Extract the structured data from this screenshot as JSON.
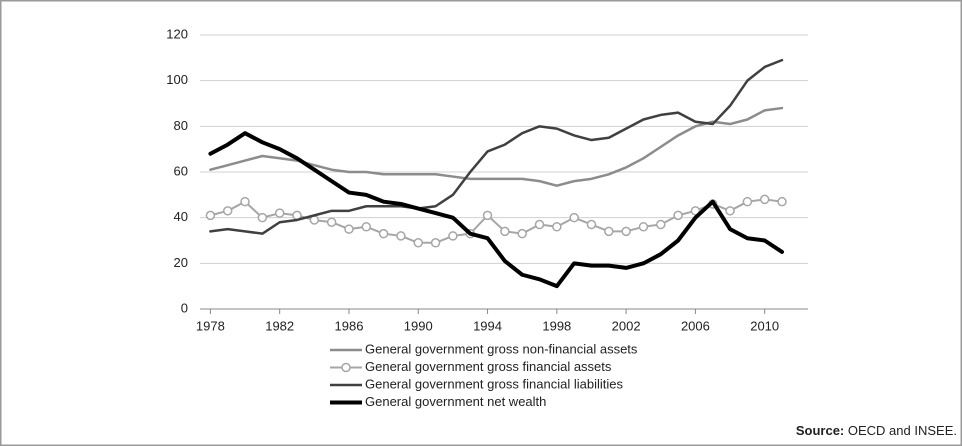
{
  "chart_data": {
    "type": "line",
    "x": [
      1978,
      1979,
      1980,
      1981,
      1982,
      1983,
      1984,
      1985,
      1986,
      1987,
      1988,
      1989,
      1990,
      1991,
      1992,
      1993,
      1994,
      1995,
      1996,
      1997,
      1998,
      1999,
      2000,
      2001,
      2002,
      2003,
      2004,
      2005,
      2006,
      2007,
      2008,
      2009,
      2010,
      2011
    ],
    "xlim": [
      1977.4,
      2012.5
    ],
    "xticks": [
      1978,
      1982,
      1986,
      1990,
      1994,
      1998,
      2002,
      2006,
      2010
    ],
    "ylim": [
      0,
      120
    ],
    "yticks": [
      0,
      20,
      40,
      60,
      80,
      100,
      120
    ],
    "grid": true,
    "series": [
      {
        "name": "General government gross non-financial assets",
        "color": "#8c8c8c",
        "line_width": 2.5,
        "values": [
          61,
          63,
          65,
          67,
          66,
          65,
          63,
          61,
          60,
          60,
          59,
          59,
          59,
          59,
          58,
          57,
          57,
          57,
          57,
          56,
          54,
          56,
          57,
          59,
          62,
          66,
          71,
          76,
          80,
          82,
          81,
          83,
          87,
          88
        ]
      },
      {
        "name": "General government gross financial assets",
        "color": "#a6a6a6",
        "line_width": 2,
        "marker": "circle",
        "values": [
          41,
          43,
          47,
          40,
          42,
          41,
          39,
          38,
          35,
          36,
          33,
          32,
          29,
          29,
          32,
          33,
          41,
          34,
          33,
          37,
          36,
          40,
          37,
          34,
          34,
          36,
          37,
          41,
          43,
          46,
          43,
          47,
          48,
          47
        ]
      },
      {
        "name": "General government gross financial liabilities",
        "color": "#404040",
        "line_width": 2.5,
        "values": [
          34,
          35,
          34,
          33,
          38,
          39,
          41,
          43,
          43,
          45,
          45,
          45,
          44,
          45,
          50,
          60,
          69,
          72,
          77,
          80,
          79,
          76,
          74,
          75,
          79,
          83,
          85,
          86,
          82,
          81,
          89,
          100,
          106,
          109
        ]
      },
      {
        "name": "General government net wealth",
        "color": "#000000",
        "line_width": 4,
        "values": [
          68,
          72,
          77,
          73,
          70,
          66,
          61,
          56,
          51,
          50,
          47,
          46,
          44,
          42,
          40,
          33,
          31,
          21,
          15,
          13,
          10,
          20,
          19,
          19,
          18,
          20,
          24,
          30,
          40,
          47,
          35,
          31,
          30,
          25
        ]
      }
    ],
    "source_label": "Source:",
    "source_text": "OECD and INSEE."
  }
}
